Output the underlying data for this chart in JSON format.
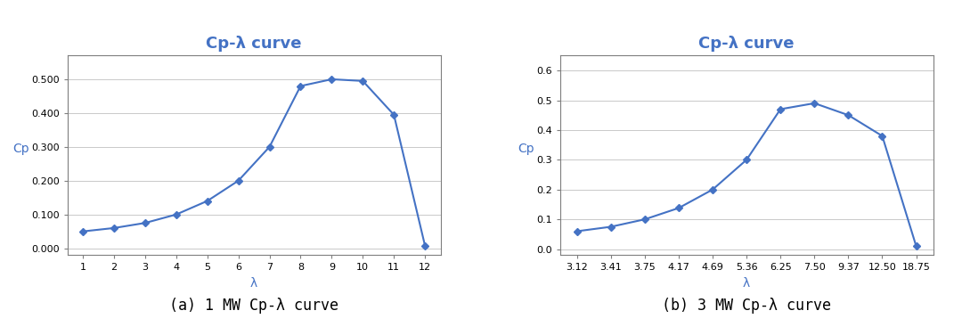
{
  "chart1": {
    "title": "Cp-λ curve",
    "xlabel": "λ",
    "ylabel": "Cp",
    "x": [
      1,
      2,
      3,
      4,
      5,
      6,
      7,
      8,
      9,
      10,
      11,
      12
    ],
    "y": [
      0.05,
      0.06,
      0.075,
      0.1,
      0.14,
      0.2,
      0.3,
      0.48,
      0.5,
      0.495,
      0.395,
      0.008
    ],
    "yticks": [
      0.0,
      0.1,
      0.2,
      0.3,
      0.4,
      0.5
    ],
    "ylim": [
      -0.02,
      0.57
    ],
    "xlim": [
      0.5,
      12.5
    ],
    "xtick_labels": [
      "1",
      "2",
      "3",
      "4",
      "5",
      "6",
      "7",
      "8",
      "9",
      "10",
      "11",
      "12"
    ],
    "caption": "(a) 1 MW Cp-λ curve",
    "line_color": "#4472C4",
    "marker": "D",
    "marker_size": 4,
    "grid_color": "#C0C0C0"
  },
  "chart2": {
    "title": "Cp-λ curve",
    "xlabel": "λ",
    "ylabel": "Cp",
    "x": [
      0,
      1,
      2,
      3,
      4,
      5,
      6,
      7,
      8,
      9,
      10
    ],
    "y": [
      0.06,
      0.075,
      0.1,
      0.138,
      0.2,
      0.3,
      0.47,
      0.49,
      0.45,
      0.38,
      0.01
    ],
    "xtick_labels": [
      "3.12",
      "3.41",
      "3.75",
      "4.17",
      "4.69",
      "5.36",
      "6.25",
      "7.50",
      "9.37",
      "12.50",
      "18.75"
    ],
    "yticks": [
      0.0,
      0.1,
      0.2,
      0.3,
      0.4,
      0.5,
      0.6
    ],
    "ylim": [
      -0.02,
      0.65
    ],
    "xlim": [
      -0.5,
      10.5
    ],
    "caption": "(b) 3 MW Cp-λ curve",
    "line_color": "#4472C4",
    "marker": "D",
    "marker_size": 4,
    "grid_color": "#C0C0C0"
  },
  "bg_color": "#FFFFFF",
  "title_color": "#4472C4",
  "label_color": "#4472C4",
  "caption_fontsize": 12,
  "title_fontsize": 13,
  "axis_label_fontsize": 10,
  "tick_fontsize": 8,
  "spine_color": "#7F7F7F"
}
